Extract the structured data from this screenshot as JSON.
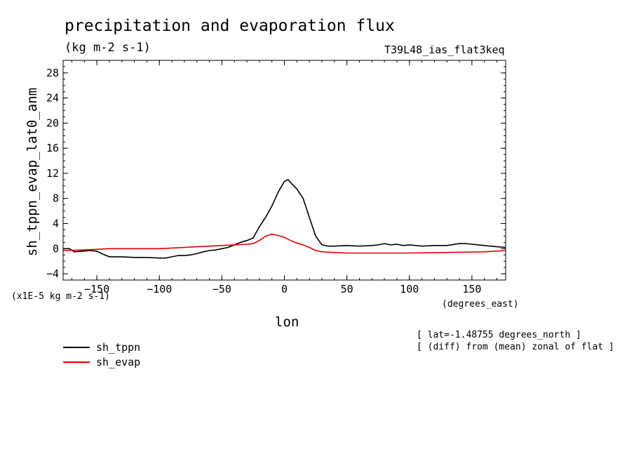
{
  "chart_data": {
    "type": "line",
    "title": "precipitation and evaporation flux",
    "units_label": "(kg m-2 s-1)",
    "run_label": "T39L48_ias_flat3keq",
    "ylabel": "sh_tppn_evap_lat0_anm",
    "xlabel": "lon",
    "x_units_label": "(degrees_east)",
    "y_scale_label": "(x1E-5 kg m-2 s-1)",
    "notes": [
      "[ lat=-1.48755 degrees_north ]",
      "[ (diff) from (mean) zonal of flat ]"
    ],
    "xlim": [
      -177,
      177
    ],
    "ylim": [
      -5,
      30
    ],
    "x_ticks": [
      -150,
      -100,
      -50,
      0,
      50,
      100,
      150
    ],
    "x_tick_labels": [
      "-150",
      "-100",
      "-50",
      "0",
      "50",
      "100",
      "150"
    ],
    "y_ticks": [
      -4,
      0,
      4,
      8,
      12,
      16,
      20,
      24,
      28
    ],
    "y_tick_labels": [
      "-4",
      "0",
      "4",
      "8",
      "12",
      "16",
      "20",
      "24",
      "28"
    ],
    "grid": false,
    "legend_position": "below-left",
    "series": [
      {
        "name": "sh_tppn",
        "color": "#000000",
        "x": [
          -177,
          -172,
          -168,
          -162,
          -155,
          -150,
          -145,
          -140,
          -135,
          -130,
          -120,
          -110,
          -100,
          -95,
          -90,
          -85,
          -80,
          -75,
          -70,
          -65,
          -60,
          -55,
          -50,
          -45,
          -40,
          -35,
          -30,
          -25,
          -20,
          -15,
          -10,
          -5,
          0,
          3,
          6,
          10,
          15,
          20,
          25,
          30,
          35,
          40,
          50,
          60,
          70,
          75,
          80,
          85,
          90,
          95,
          100,
          105,
          110,
          120,
          130,
          140,
          145,
          150,
          160,
          170,
          177
        ],
        "values": [
          0.0,
          0.0,
          -0.5,
          -0.4,
          -0.3,
          -0.4,
          -0.9,
          -1.3,
          -1.3,
          -1.3,
          -1.4,
          -1.4,
          -1.5,
          -1.5,
          -1.3,
          -1.1,
          -1.1,
          -1.0,
          -0.8,
          -0.5,
          -0.3,
          -0.2,
          0.0,
          0.2,
          0.6,
          1.0,
          1.3,
          1.7,
          3.5,
          5.0,
          6.8,
          9.0,
          10.7,
          11.0,
          10.3,
          9.5,
          8.0,
          5.0,
          2.0,
          0.6,
          0.4,
          0.4,
          0.5,
          0.4,
          0.5,
          0.6,
          0.8,
          0.6,
          0.7,
          0.5,
          0.6,
          0.5,
          0.4,
          0.5,
          0.5,
          0.8,
          0.8,
          0.7,
          0.5,
          0.3,
          0.2
        ]
      },
      {
        "name": "sh_evap",
        "color": "#e00000",
        "x": [
          -177,
          -160,
          -150,
          -140,
          -120,
          -100,
          -90,
          -80,
          -70,
          -60,
          -50,
          -40,
          -30,
          -25,
          -20,
          -15,
          -10,
          -5,
          0,
          5,
          10,
          15,
          20,
          25,
          30,
          40,
          50,
          70,
          100,
          130,
          160,
          177
        ],
        "values": [
          -0.3,
          -0.2,
          -0.1,
          0.0,
          0.0,
          0.0,
          0.1,
          0.2,
          0.3,
          0.4,
          0.5,
          0.6,
          0.7,
          0.8,
          1.3,
          2.0,
          2.3,
          2.1,
          1.8,
          1.3,
          0.9,
          0.6,
          0.2,
          -0.3,
          -0.5,
          -0.6,
          -0.7,
          -0.7,
          -0.7,
          -0.6,
          -0.5,
          -0.3
        ]
      }
    ]
  }
}
